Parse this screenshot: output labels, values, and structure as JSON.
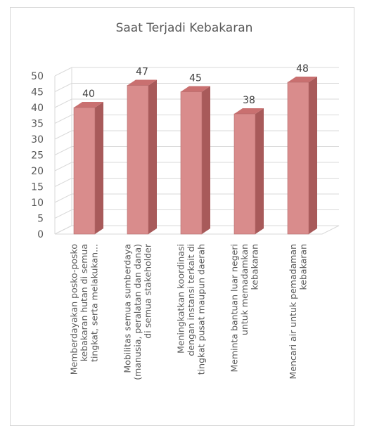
{
  "chart_data": {
    "type": "bar",
    "title": "Saat Terjadi Kebakaran",
    "xlabel": "",
    "ylabel": "",
    "ylim": [
      0,
      50
    ],
    "yticks": [
      "0",
      "5",
      "10",
      "15",
      "20",
      "25",
      "30",
      "35",
      "40",
      "45",
      "50"
    ],
    "grid": true,
    "legend": "none",
    "three_d": true,
    "colors": {
      "bar_front": "#d98c8c",
      "bar_side": "#a85a5a",
      "bar_top": "#c97070",
      "grid": "#d9d9d9",
      "text": "#595959"
    },
    "categories": [
      [
        "Memberdayakan posko-posko",
        "kebakaran hutan di semua",
        "tingkat, serta melakukan..."
      ],
      [
        "Mobilitas semua sumberdaya",
        "(manusia, peralatan dan dana)",
        "di semua stakeholder"
      ],
      [
        "Meningkatkan koordinasi",
        "dengan instansi terkait di",
        "tingkat pusat maupun daerah"
      ],
      [
        "Meminta bantuan luar negeri",
        "untuk memadamkan",
        "kebakaran"
      ],
      [
        "Mencari air untuk pemadaman",
        "kebakaran"
      ]
    ],
    "values": [
      40,
      47,
      45,
      38,
      48
    ],
    "data_labels": [
      "40",
      "47",
      "45",
      "38",
      "48"
    ]
  }
}
